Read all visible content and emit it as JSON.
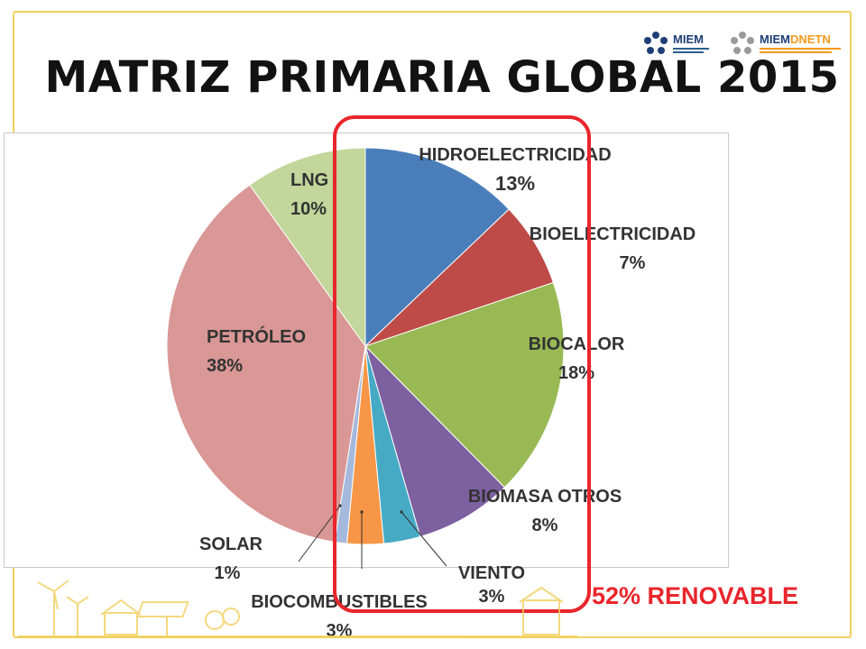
{
  "slide": {
    "title": "MATRIZ PRIMARIA GLOBAL 2015",
    "renewable_label": "52% RENOVABLE",
    "colors": {
      "frame": "#f2cf5e",
      "highlight": "#e8262c",
      "title": "#121212"
    }
  },
  "logos": [
    {
      "name": "MIEM",
      "icon": "gear-flower-logo"
    },
    {
      "name": "MIEM",
      "name_accent": "DNETN",
      "icon": "gear-flower-logo"
    }
  ],
  "chart_data": {
    "type": "pie",
    "title": "MATRIZ PRIMARIA GLOBAL 2015",
    "start": "12 o'clock, clockwise",
    "slices": [
      {
        "name": "HIDROELECTRICIDAD",
        "value": 13,
        "value_text": "13%",
        "color": "#4a7ebb"
      },
      {
        "name": "BIOELECTRICIDAD",
        "value": 7,
        "value_text": "7%",
        "color": "#be4b48"
      },
      {
        "name": "BIOCALOR",
        "value": 18,
        "value_text": "18%",
        "color": "#98b954"
      },
      {
        "name": "BIOMASA OTROS",
        "value": 8,
        "value_text": "8%",
        "color": "#7d60a0"
      },
      {
        "name": "VIENTO",
        "value": 3,
        "value_text": "3%",
        "color": "#46aac5"
      },
      {
        "name": "BIOCOMBUSTIBLES",
        "value": 3,
        "value_text": "3%",
        "color": "#f79646"
      },
      {
        "name": "SOLAR",
        "value": 1,
        "value_text": "1%",
        "color": "#a5b9dd"
      },
      {
        "name": "PETRÓLEO",
        "value": 38,
        "value_text": "38%",
        "color": "#d99795"
      },
      {
        "name": "LNG",
        "value": 10,
        "value_text": "10%",
        "color": "#c3d69b"
      }
    ],
    "renewable_total_text": "52% RENOVABLE"
  }
}
